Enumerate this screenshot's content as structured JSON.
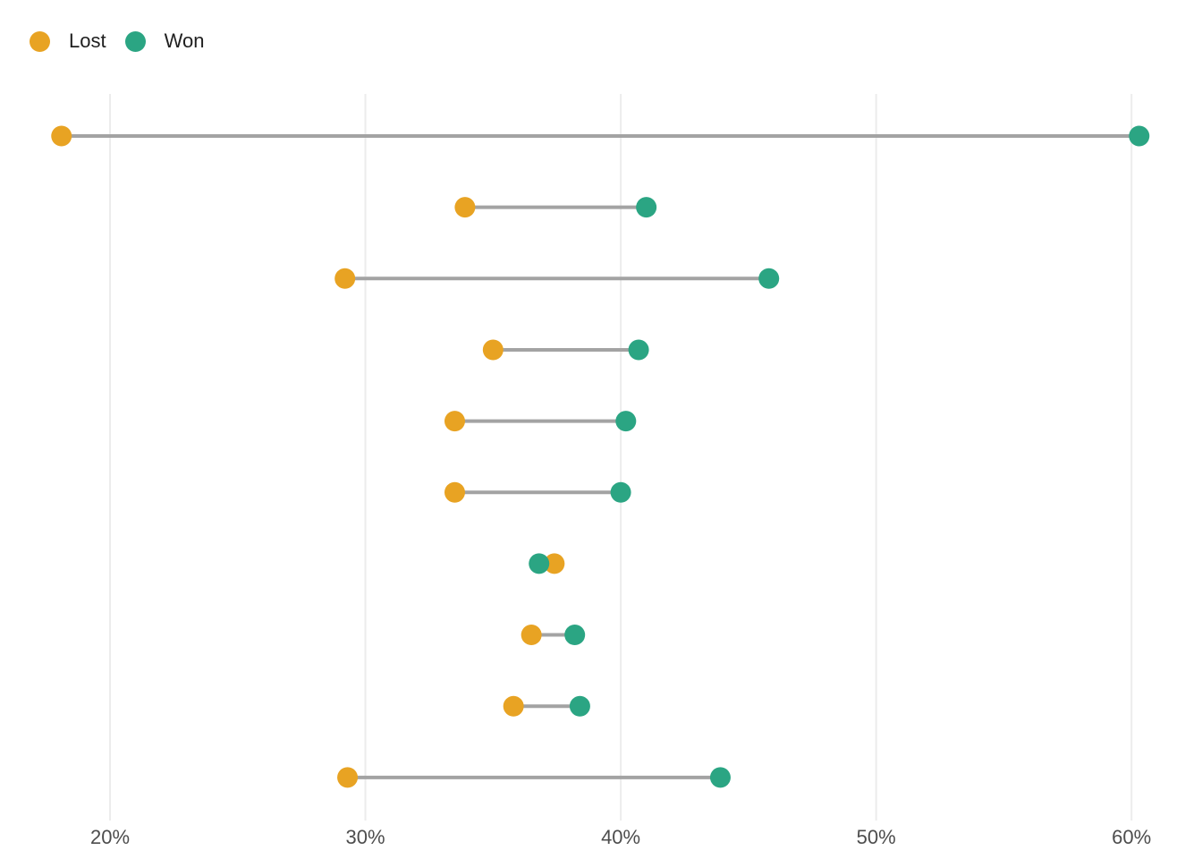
{
  "legend": {
    "items": [
      {
        "label": "Lost",
        "color": "#E8A323"
      },
      {
        "label": "Won",
        "color": "#2BA583"
      }
    ]
  },
  "chart_data": {
    "type": "scatter",
    "subtype": "dumbbell",
    "orientation": "horizontal",
    "title": "",
    "xlabel": "",
    "ylabel": "",
    "row_count": 10,
    "series": [
      {
        "name": "Lost",
        "color": "#E8A323",
        "values": [
          18.1,
          33.9,
          29.2,
          35.0,
          33.5,
          33.5,
          37.4,
          36.5,
          35.8,
          29.3
        ]
      },
      {
        "name": "Won",
        "color": "#2BA583",
        "values": [
          60.3,
          41.0,
          45.8,
          40.7,
          40.2,
          40.0,
          36.8,
          38.2,
          38.4,
          43.9
        ]
      }
    ],
    "x_axis": {
      "tick_values": [
        20,
        30,
        40,
        50,
        60
      ],
      "tick_labels": [
        "20%",
        "30%",
        "40%",
        "50%",
        "60%"
      ],
      "unit": "%"
    },
    "y_axis": {
      "tick_labels": []
    },
    "grid": "vertical-only",
    "legend_position": "top-left",
    "colors": {
      "connector": "#A3A3A3",
      "gridline": "#ECECEC",
      "tick_label": "#4D4D4D",
      "background": "#FFFFFF"
    }
  }
}
